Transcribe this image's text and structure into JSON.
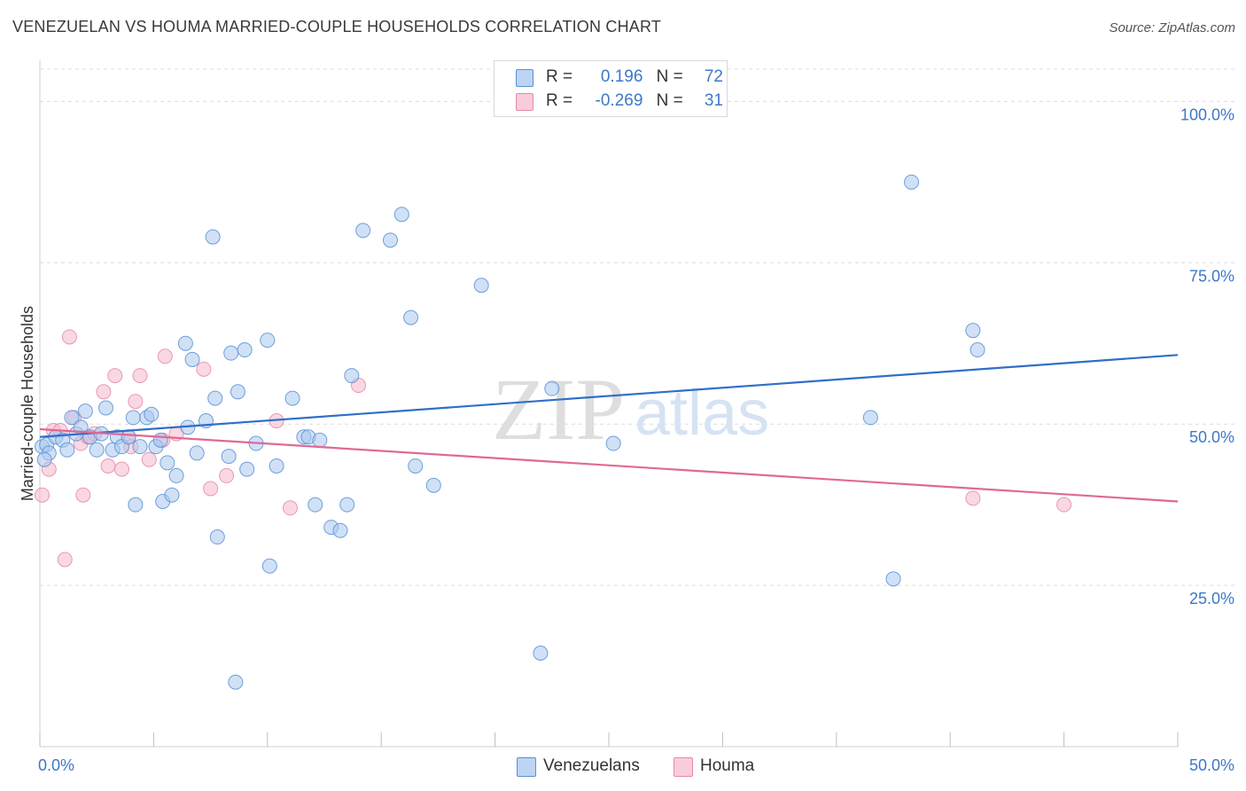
{
  "title": "VENEZUELAN VS HOUMA MARRIED-COUPLE HOUSEHOLDS CORRELATION CHART",
  "source": "Source: ZipAtlas.com",
  "watermark": {
    "zip": "ZIP",
    "atlas": "atlas"
  },
  "legend": {
    "rows": [
      {
        "r_label": "R =",
        "r_value": "0.196",
        "n_label": "N =",
        "n_value": "72"
      },
      {
        "r_label": "R =",
        "r_value": "-0.269",
        "n_label": "N =",
        "n_value": "31"
      }
    ]
  },
  "bottom_legend": [
    "Venezuelans",
    "Houma"
  ],
  "colors": {
    "venezuelans_fill": "#a9c8ef",
    "venezuelans_stroke": "#5a8fd6",
    "venezuelans_line": "#2f6fc8",
    "houma_fill": "#f5b8cb",
    "houma_stroke": "#e58aa7",
    "houma_line": "#e06895",
    "tick_label": "#3d78c8",
    "grid": "#dcdcdc"
  },
  "chart_data": {
    "type": "scatter",
    "title": "VENEZUELAN VS HOUMA MARRIED-COUPLE HOUSEHOLDS CORRELATION CHART",
    "xlabel": "",
    "ylabel": "Married-couple Households",
    "xlim": [
      0,
      50
    ],
    "ylim": [
      0,
      105
    ],
    "x_tick_labels": [
      "0.0%",
      "50.0%"
    ],
    "y_ticks": [
      25,
      50,
      75,
      100
    ],
    "y_tick_labels": [
      "25.0%",
      "50.0%",
      "75.0%",
      "100.0%"
    ],
    "grid": true,
    "legend_position": "top-center",
    "series": [
      {
        "name": "Venezuelans",
        "r": 0.196,
        "n": 72,
        "trend": {
          "x": [
            0,
            50
          ],
          "y": [
            48.0,
            60.7
          ]
        },
        "points": [
          [
            0.1,
            46.5
          ],
          [
            0.3,
            46.8
          ],
          [
            0.4,
            45.5
          ],
          [
            0.7,
            48.0
          ],
          [
            1.0,
            47.5
          ],
          [
            1.2,
            46.0
          ],
          [
            1.4,
            51.0
          ],
          [
            1.6,
            48.5
          ],
          [
            1.8,
            49.5
          ],
          [
            2.0,
            52.0
          ],
          [
            2.2,
            48.0
          ],
          [
            2.5,
            46.0
          ],
          [
            2.7,
            48.5
          ],
          [
            2.9,
            52.5
          ],
          [
            3.2,
            46.0
          ],
          [
            3.4,
            48.0
          ],
          [
            3.6,
            46.5
          ],
          [
            3.9,
            48.0
          ],
          [
            4.1,
            51.0
          ],
          [
            4.2,
            37.5
          ],
          [
            4.4,
            46.5
          ],
          [
            4.7,
            51.0
          ],
          [
            4.9,
            51.5
          ],
          [
            5.1,
            46.5
          ],
          [
            5.3,
            47.5
          ],
          [
            5.4,
            38.0
          ],
          [
            5.6,
            44.0
          ],
          [
            5.8,
            39.0
          ],
          [
            6.0,
            42.0
          ],
          [
            6.4,
            62.5
          ],
          [
            6.5,
            49.5
          ],
          [
            6.7,
            60.0
          ],
          [
            6.9,
            45.5
          ],
          [
            7.3,
            50.5
          ],
          [
            7.6,
            79.0
          ],
          [
            7.7,
            54.0
          ],
          [
            7.8,
            32.5
          ],
          [
            8.3,
            45.0
          ],
          [
            8.4,
            61.0
          ],
          [
            8.6,
            10.0
          ],
          [
            8.7,
            55.0
          ],
          [
            9.0,
            61.5
          ],
          [
            9.1,
            43.0
          ],
          [
            9.5,
            47.0
          ],
          [
            10.0,
            63.0
          ],
          [
            10.1,
            28.0
          ],
          [
            10.4,
            43.5
          ],
          [
            11.1,
            54.0
          ],
          [
            11.6,
            48.0
          ],
          [
            11.8,
            48.0
          ],
          [
            12.1,
            37.5
          ],
          [
            12.3,
            47.5
          ],
          [
            12.8,
            34.0
          ],
          [
            13.2,
            33.5
          ],
          [
            13.5,
            37.5
          ],
          [
            13.7,
            57.5
          ],
          [
            14.2,
            80.0
          ],
          [
            15.4,
            78.5
          ],
          [
            15.9,
            82.5
          ],
          [
            16.3,
            66.5
          ],
          [
            16.5,
            43.5
          ],
          [
            17.3,
            40.5
          ],
          [
            19.4,
            71.5
          ],
          [
            22.0,
            14.5
          ],
          [
            22.5,
            55.5
          ],
          [
            25.2,
            47.0
          ],
          [
            36.5,
            51.0
          ],
          [
            37.5,
            26.0
          ],
          [
            38.3,
            87.5
          ],
          [
            41.0,
            64.5
          ],
          [
            41.2,
            61.5
          ],
          [
            0.2,
            44.5
          ]
        ]
      },
      {
        "name": "Houma",
        "r": -0.269,
        "n": 31,
        "trend": {
          "x": [
            0,
            50
          ],
          "y": [
            49.2,
            38.0
          ]
        },
        "points": [
          [
            0.1,
            39.0
          ],
          [
            0.4,
            43.0
          ],
          [
            0.6,
            49.0
          ],
          [
            0.9,
            49.0
          ],
          [
            1.1,
            29.0
          ],
          [
            1.3,
            63.5
          ],
          [
            1.5,
            51.0
          ],
          [
            1.8,
            47.0
          ],
          [
            1.9,
            39.0
          ],
          [
            2.1,
            48.0
          ],
          [
            2.4,
            48.5
          ],
          [
            2.8,
            55.0
          ],
          [
            3.0,
            43.5
          ],
          [
            3.3,
            57.5
          ],
          [
            3.6,
            43.0
          ],
          [
            3.9,
            48.0
          ],
          [
            4.2,
            53.5
          ],
          [
            4.4,
            57.5
          ],
          [
            4.8,
            44.5
          ],
          [
            5.4,
            47.5
          ],
          [
            5.5,
            60.5
          ],
          [
            6.0,
            48.5
          ],
          [
            7.2,
            58.5
          ],
          [
            7.5,
            40.0
          ],
          [
            8.2,
            42.0
          ],
          [
            10.4,
            50.5
          ],
          [
            11.0,
            37.0
          ],
          [
            14.0,
            56.0
          ],
          [
            4.0,
            46.5
          ],
          [
            41.0,
            38.5
          ],
          [
            45.0,
            37.5
          ]
        ]
      }
    ]
  }
}
